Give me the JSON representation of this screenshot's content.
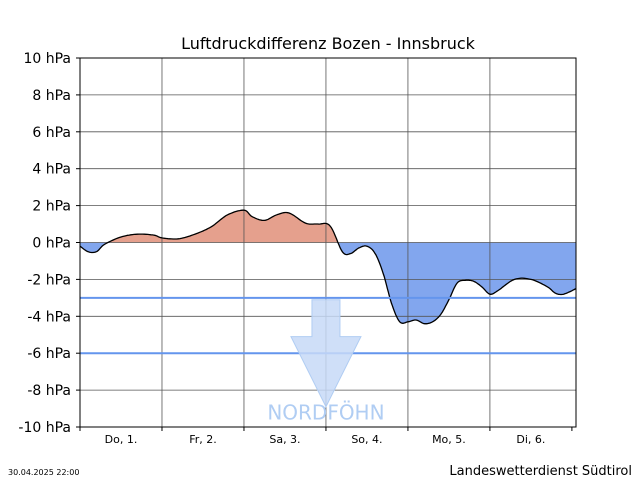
{
  "chart_data": {
    "type": "area",
    "title": "Luftdruckdifferenz Bozen - Innsbruck",
    "xlabel": "",
    "ylabel": "",
    "ylim": [
      -10,
      10
    ],
    "yticks": [
      10,
      8,
      6,
      4,
      2,
      0,
      -2,
      -4,
      -6,
      -8,
      -10
    ],
    "ytick_labels": [
      "10 hPa",
      "8 hPa",
      "6 hPa",
      "4 hPa",
      "2 hPa",
      "0 hPa",
      "-2 hPa",
      "-4 hPa",
      "-6 hPa",
      "-8 hPa",
      "-10 hPa"
    ],
    "x_day_labels": [
      "Do, 1.",
      "Fr, 2.",
      "Sa, 3.",
      "So, 4.",
      "Mo, 5.",
      "Di, 6."
    ],
    "x_unit": "days from start of 1 May 2025",
    "xlim": [
      0,
      6.05
    ],
    "grid": true,
    "thresholds": [
      -3,
      -6
    ],
    "threshold_color": "#6495ed",
    "positive_color": "#e5a08d",
    "negative_color": "#82a6ee",
    "series": [
      {
        "x": [
          0,
          0.1,
          0.2,
          0.3,
          0.5,
          0.7,
          0.9,
          1.0,
          1.2,
          1.4,
          1.6,
          1.8,
          2.0,
          2.1,
          2.25,
          2.4,
          2.55,
          2.75,
          2.9,
          3.05,
          3.2,
          3.3,
          3.4,
          3.5,
          3.6,
          3.7,
          3.8,
          3.9,
          4.0,
          4.1,
          4.2,
          4.3,
          4.4,
          4.5,
          4.6,
          4.7,
          4.8,
          4.9,
          5.0,
          5.1,
          5.3,
          5.5,
          5.7,
          5.8,
          5.9,
          6.05
        ],
        "y": [
          -0.2,
          -0.5,
          -0.5,
          -0.1,
          0.3,
          0.45,
          0.4,
          0.25,
          0.2,
          0.45,
          0.85,
          1.5,
          1.75,
          1.4,
          1.2,
          1.5,
          1.6,
          1.05,
          1.0,
          0.9,
          -0.5,
          -0.6,
          -0.3,
          -0.2,
          -0.6,
          -1.7,
          -3.3,
          -4.3,
          -4.3,
          -4.2,
          -4.4,
          -4.3,
          -3.9,
          -3.1,
          -2.2,
          -2.05,
          -2.1,
          -2.4,
          -2.8,
          -2.6,
          -2.0,
          -2.0,
          -2.4,
          -2.75,
          -2.8,
          -2.5
        ]
      }
    ],
    "annotation": "NORDFÖHN",
    "annotation_color": "#b0cdf3",
    "arrow_color": "#c7d9f7"
  },
  "footer": {
    "timestamp": "30.04.2025 22:00",
    "source": "Landeswetterdienst Südtirol"
  }
}
